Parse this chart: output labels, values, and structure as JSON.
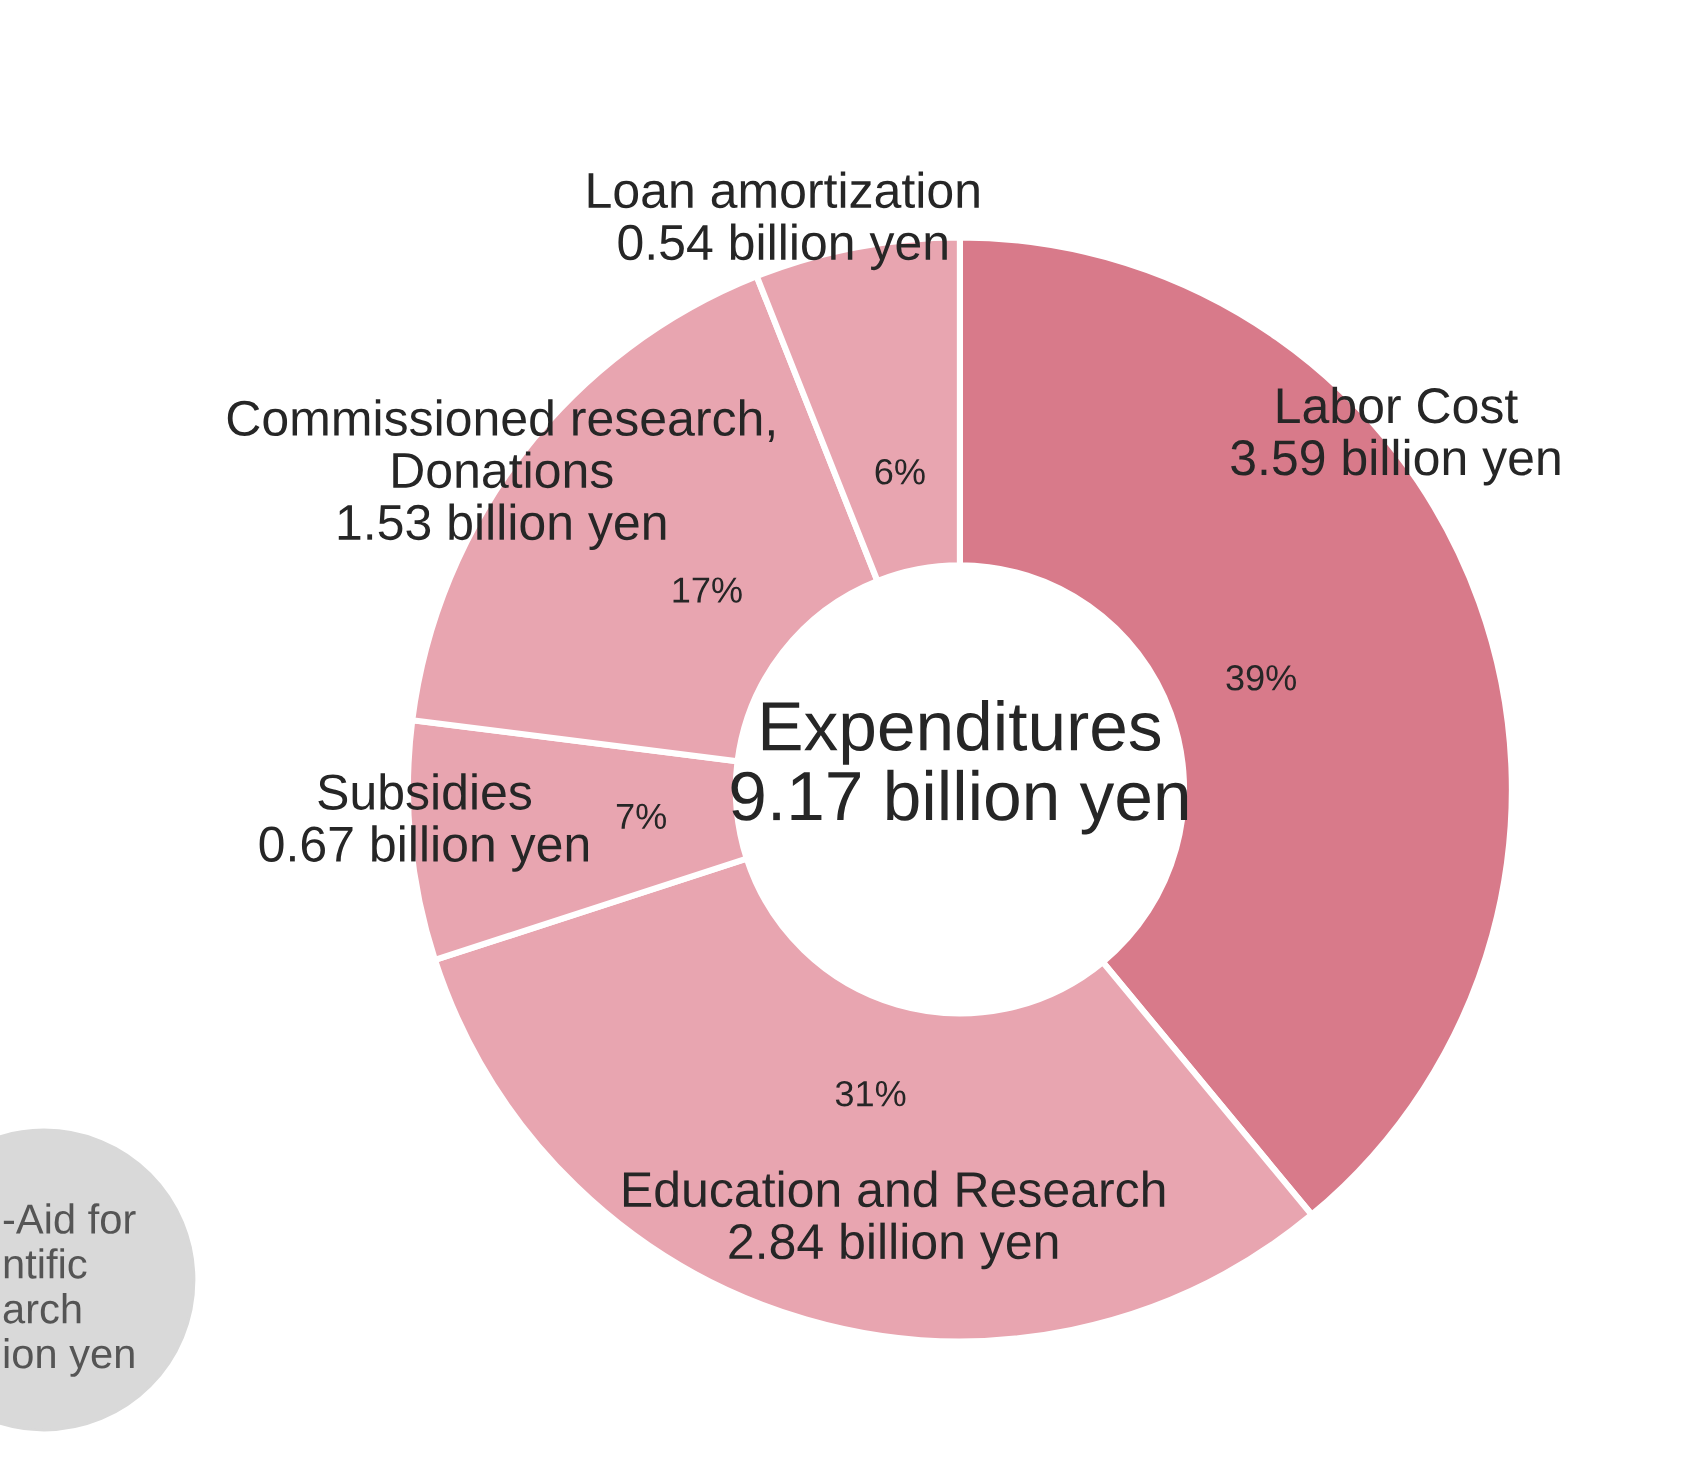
{
  "chart_data": {
    "type": "donut",
    "categories": [
      "Labor Cost\n3.59 billion yen",
      "Education and Research\n2.84 billion yen",
      "Subsidies\n0.67 billion yen",
      "Commissioned research,\nDonations\n1.53 billion yen",
      "Loan amortization\n0.54 billion yen"
    ],
    "values": [
      39,
      31,
      7,
      17,
      6
    ],
    "value_labels": [
      "39%",
      "31%",
      "7%",
      "17%",
      "6%"
    ],
    "colors": [
      "#d87a8a",
      "#e8a5b0",
      "#e8a5b0",
      "#e8a5b0",
      "#e8a5b0"
    ],
    "annotations": [
      "Expenditures\n9.17 billion yen",
      "-Aid for\nntific\narch\nion yen"
    ]
  }
}
